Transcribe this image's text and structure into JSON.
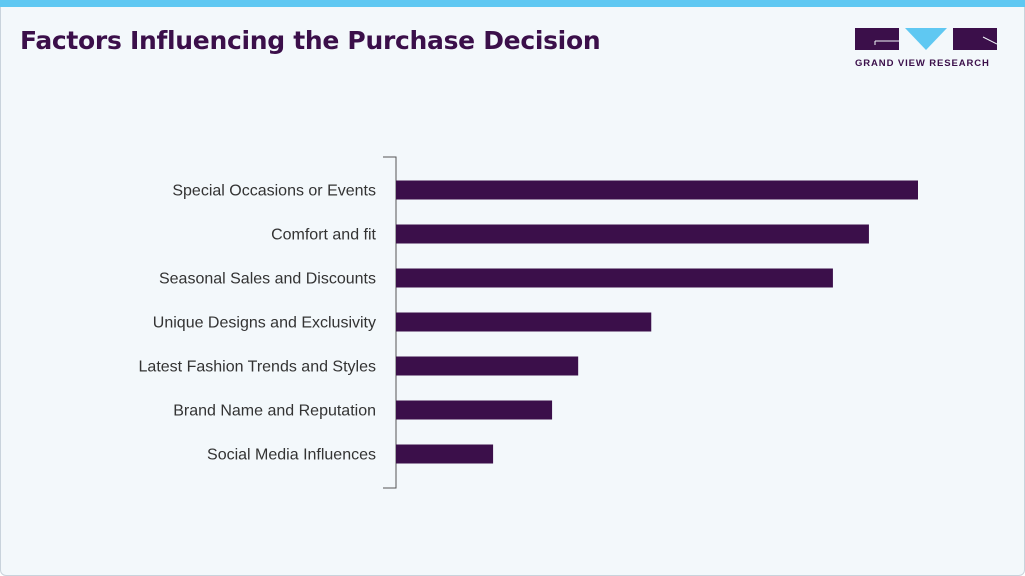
{
  "header": {
    "title": "Factors Influencing the Purchase Decision"
  },
  "logo": {
    "text": "GRAND VIEW RESEARCH"
  },
  "colors": {
    "bar": "#3b0f4a",
    "accent": "#5fc8f2",
    "title": "#3b0f4a"
  },
  "chart_data": {
    "type": "bar",
    "orientation": "horizontal",
    "title": "Factors Influencing the Purchase Decision",
    "categories": [
      "Special Occasions or Events",
      "Comfort and fit",
      "Seasonal Sales and Discounts",
      "Unique Designs and Exclusivity",
      "Latest Fashion Trends and Styles",
      "Brand Name and Reputation",
      "Social Media Influences"
    ],
    "values": [
      100,
      90.6,
      83.7,
      48.9,
      34.9,
      29.9,
      18.6
    ],
    "value_scale": "relative (longest bar = 100), no axis values shown",
    "xlabel": "",
    "ylabel": "",
    "grid": false,
    "legend": "none"
  }
}
